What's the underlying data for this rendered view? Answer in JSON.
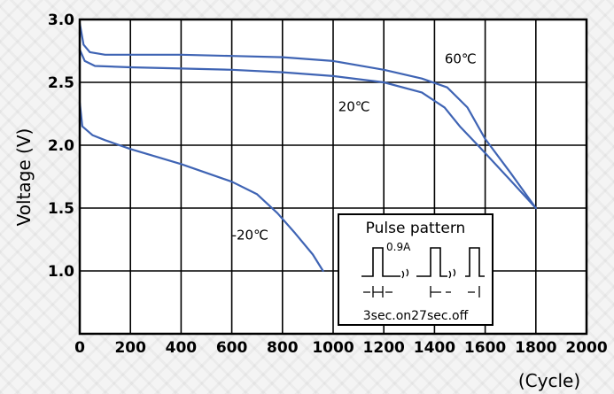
{
  "chart_data": {
    "type": "line",
    "title": "",
    "xlabel": "(Cycle)",
    "ylabel": "Voltage  (V)",
    "xlim": [
      0,
      2000
    ],
    "ylim": [
      0.5,
      3.0
    ],
    "x_ticks": [
      "0",
      "200",
      "400",
      "600",
      "800",
      "1000",
      "1200",
      "1400",
      "1600",
      "1800",
      "2000"
    ],
    "y_ticks": [
      "1.0",
      "1.5",
      "2.0",
      "2.5",
      "3.0"
    ],
    "grid": true,
    "line_color": "#3f64b4",
    "series": [
      {
        "name": "60℃",
        "label_at": [
          1440,
          2.65
        ],
        "points": [
          [
            0,
            2.97
          ],
          [
            15,
            2.8
          ],
          [
            40,
            2.74
          ],
          [
            100,
            2.72
          ],
          [
            200,
            2.72
          ],
          [
            400,
            2.72
          ],
          [
            600,
            2.71
          ],
          [
            800,
            2.7
          ],
          [
            1000,
            2.67
          ],
          [
            1200,
            2.6
          ],
          [
            1350,
            2.53
          ],
          [
            1450,
            2.46
          ],
          [
            1530,
            2.3
          ],
          [
            1600,
            2.05
          ],
          [
            1700,
            1.78
          ],
          [
            1800,
            1.5
          ]
        ]
      },
      {
        "name": "20℃",
        "label_at": [
          1020,
          2.27
        ],
        "points": [
          [
            0,
            2.76
          ],
          [
            20,
            2.67
          ],
          [
            60,
            2.63
          ],
          [
            200,
            2.62
          ],
          [
            400,
            2.61
          ],
          [
            600,
            2.6
          ],
          [
            800,
            2.58
          ],
          [
            1000,
            2.55
          ],
          [
            1200,
            2.5
          ],
          [
            1350,
            2.42
          ],
          [
            1440,
            2.3
          ],
          [
            1500,
            2.15
          ],
          [
            1580,
            1.98
          ],
          [
            1700,
            1.72
          ],
          [
            1800,
            1.5
          ]
        ]
      },
      {
        "name": "-20℃",
        "label_at": [
          600,
          1.25
        ],
        "points": [
          [
            0,
            2.34
          ],
          [
            10,
            2.15
          ],
          [
            50,
            2.08
          ],
          [
            100,
            2.04
          ],
          [
            200,
            1.97
          ],
          [
            400,
            1.85
          ],
          [
            600,
            1.71
          ],
          [
            700,
            1.61
          ],
          [
            780,
            1.46
          ],
          [
            850,
            1.3
          ],
          [
            920,
            1.13
          ],
          [
            960,
            1.0
          ]
        ]
      }
    ],
    "inset": {
      "title": "Pulse pattern",
      "amplitude": "0.9A",
      "caption": "3sec.on27sec.off"
    }
  }
}
